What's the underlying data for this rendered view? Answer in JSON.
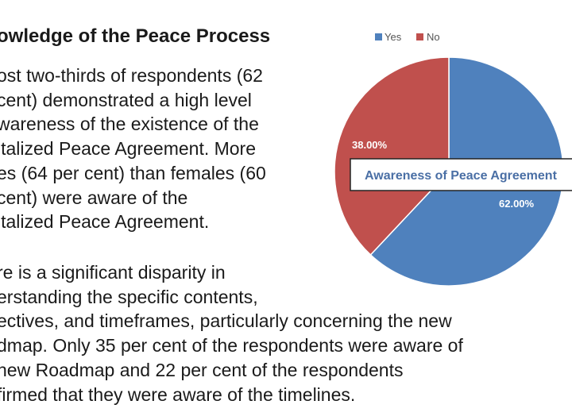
{
  "section": {
    "heading": "owledge of the Peace Process",
    "paragraph1": [
      "ost two-thirds of respondents (62",
      "cent) demonstrated a high level",
      "wareness of the existence of the",
      "italized Peace Agreement. More",
      "es (64 per cent) than females (60",
      "cent) were aware of the",
      "italized Peace Agreement."
    ],
    "paragraph2": [
      "re is a significant disparity in",
      "erstanding the specific contents,",
      "ectives, and timeframes, particularly concerning the new",
      "dmap. Only 35 per cent of the respondents were aware of",
      "new Roadmap and 22 per cent of the respondents",
      "firmed that they were aware of the timelines."
    ]
  },
  "chart_data": {
    "type": "pie",
    "title": "Awareness of Peace Agreement",
    "legend": "top",
    "categories": [
      "Yes",
      "No"
    ],
    "values": [
      62.0,
      38.0
    ],
    "data_labels": [
      "62.00%",
      "38.00%"
    ],
    "colors": [
      "#4f81bd",
      "#c0504d"
    ],
    "start_angle_deg": 0,
    "direction": "clockwise"
  }
}
